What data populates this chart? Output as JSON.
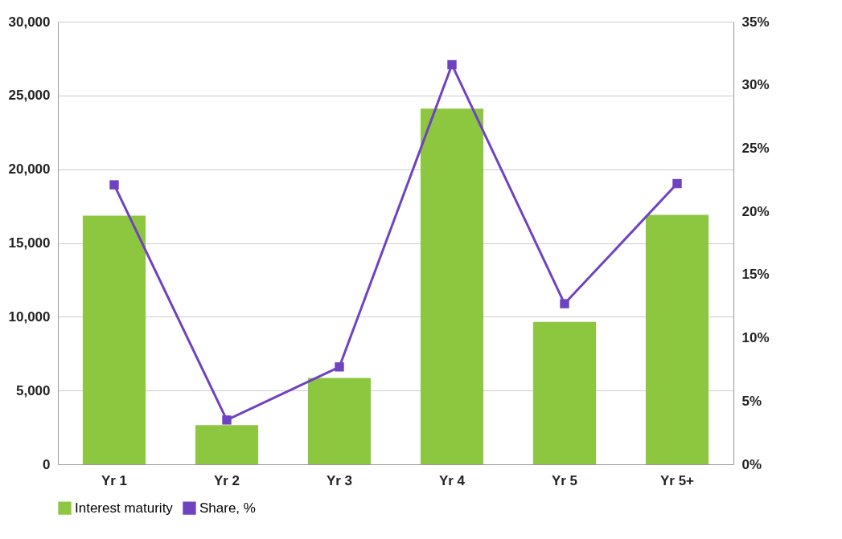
{
  "chart_data": {
    "type": "bar",
    "categories": [
      "Yr 1",
      "Yr 2",
      "Yr 3",
      "Yr 4",
      "Yr 5",
      "Yr 5+"
    ],
    "series": [
      {
        "name": "Interest maturity",
        "color": "#8dc63f",
        "values": [
          16850,
          2650,
          5850,
          24100,
          9650,
          16900
        ]
      },
      {
        "name": "Share, %",
        "type": "line",
        "axis": "y2",
        "color": "#6f42c1",
        "marker": "square",
        "values": [
          22.1,
          3.5,
          7.7,
          31.6,
          12.7,
          22.2
        ]
      }
    ],
    "ylim": [
      0,
      30000
    ],
    "yticks": [
      {
        "value": 0,
        "label": "0"
      },
      {
        "value": 5000,
        "label": "5,000"
      },
      {
        "value": 10000,
        "label": "10,000"
      },
      {
        "value": 15000,
        "label": "15,000"
      },
      {
        "value": 20000,
        "label": "20,000"
      },
      {
        "value": 25000,
        "label": "25,000"
      },
      {
        "value": 30000,
        "label": "30,000"
      }
    ],
    "y2lim": [
      0,
      35
    ],
    "y2ticks": [
      {
        "value": 0,
        "label": "0%"
      },
      {
        "value": 5,
        "label": "5%"
      },
      {
        "value": 10,
        "label": "10%"
      },
      {
        "value": 15,
        "label": "15%"
      },
      {
        "value": 20,
        "label": "20%"
      },
      {
        "value": 25,
        "label": "25%"
      },
      {
        "value": 30,
        "label": "30%"
      },
      {
        "value": 35,
        "label": "35%"
      }
    ],
    "grid": "y",
    "legend": "bottom"
  }
}
